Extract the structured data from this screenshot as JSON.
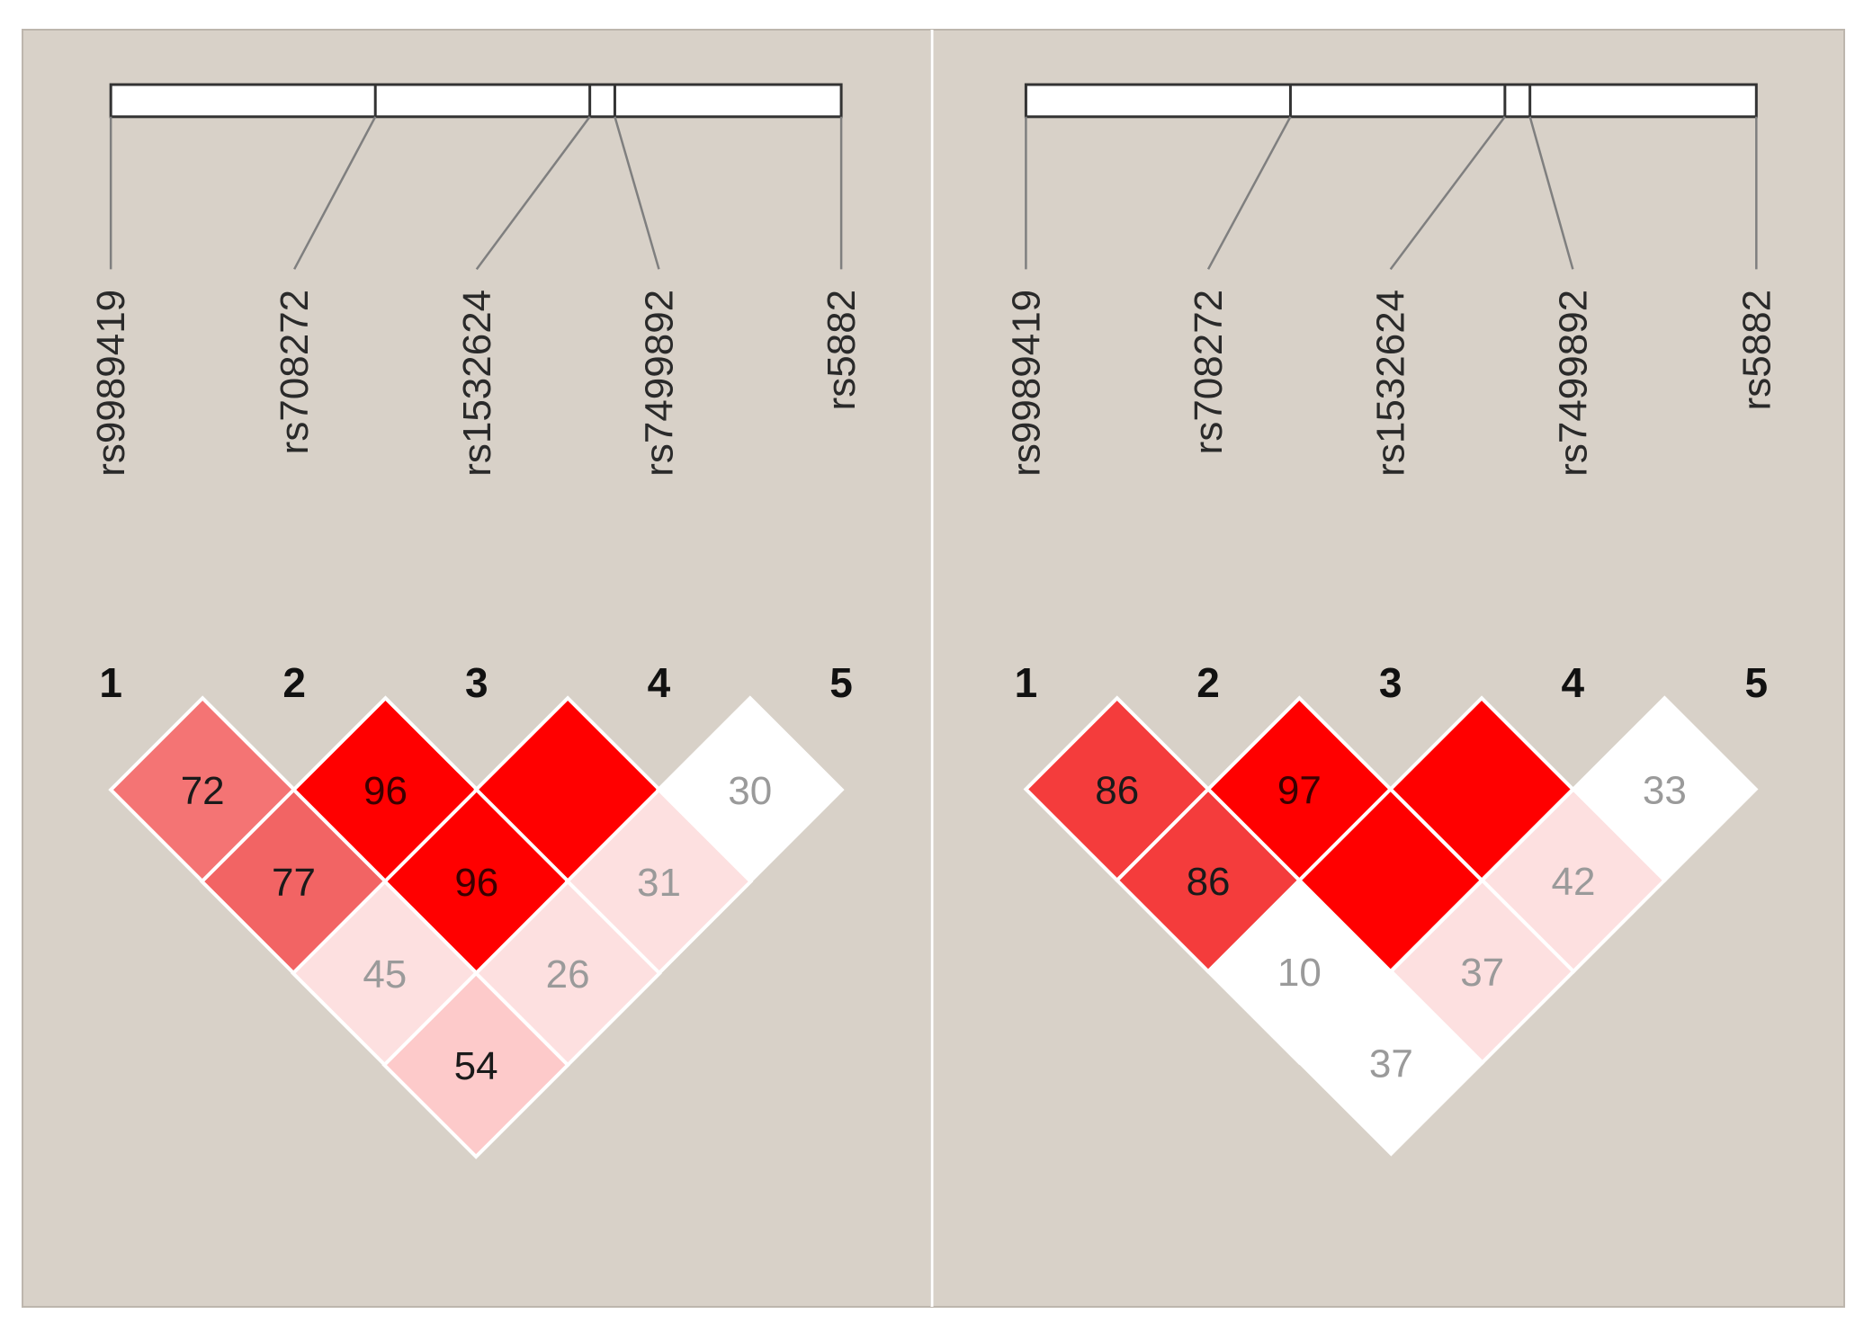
{
  "colors": {
    "panel_bg": "#d8d1c8",
    "panel_border": "#bdb6ad",
    "divider": "#ffffff",
    "track_fill": "#ffffff",
    "track_stroke": "#333333",
    "connector": "#7f7f7f"
  },
  "panels": [
    {
      "id": "left",
      "markers": [
        {
          "index": "1",
          "snp": "rs9989419"
        },
        {
          "index": "2",
          "snp": "rs708272"
        },
        {
          "index": "3",
          "snp": "rs1532624"
        },
        {
          "index": "4",
          "snp": "rs7499892"
        },
        {
          "index": "5",
          "snp": "rs5882"
        }
      ],
      "ld_cells": [
        {
          "pair": "1-2",
          "label": "72",
          "fill": "#f47474",
          "text_color": "#1a1a1a"
        },
        {
          "pair": "2-3",
          "label": "96",
          "fill": "#ff0000",
          "text_color": "#3a0000"
        },
        {
          "pair": "3-4",
          "label": "",
          "fill": "#ff0000",
          "text_color": "#3a0000"
        },
        {
          "pair": "4-5",
          "label": "30",
          "fill": "#ffffff",
          "text_color": "#9a9a9a"
        },
        {
          "pair": "1-3",
          "label": "77",
          "fill": "#f26464",
          "text_color": "#1a1a1a"
        },
        {
          "pair": "2-4",
          "label": "96",
          "fill": "#ff0000",
          "text_color": "#3a0000"
        },
        {
          "pair": "3-5",
          "label": "31",
          "fill": "#fde0e0",
          "text_color": "#9a9a9a"
        },
        {
          "pair": "1-4",
          "label": "45",
          "fill": "#fde0e0",
          "text_color": "#9a9a9a"
        },
        {
          "pair": "2-5",
          "label": "26",
          "fill": "#fde0e0",
          "text_color": "#9a9a9a"
        },
        {
          "pair": "1-5",
          "label": "54",
          "fill": "#fdcaca",
          "text_color": "#1a1a1a"
        }
      ]
    },
    {
      "id": "right",
      "markers": [
        {
          "index": "1",
          "snp": "rs9989419"
        },
        {
          "index": "2",
          "snp": "rs708272"
        },
        {
          "index": "3",
          "snp": "rs1532624"
        },
        {
          "index": "4",
          "snp": "rs7499892"
        },
        {
          "index": "5",
          "snp": "rs5882"
        }
      ],
      "ld_cells": [
        {
          "pair": "1-2",
          "label": "86",
          "fill": "#f43c3c",
          "text_color": "#1a1a1a"
        },
        {
          "pair": "2-3",
          "label": "97",
          "fill": "#ff0000",
          "text_color": "#3a0000"
        },
        {
          "pair": "3-4",
          "label": "",
          "fill": "#ff0000",
          "text_color": "#3a0000"
        },
        {
          "pair": "4-5",
          "label": "33",
          "fill": "#ffffff",
          "text_color": "#9a9a9a"
        },
        {
          "pair": "1-3",
          "label": "86",
          "fill": "#f43c3c",
          "text_color": "#1a1a1a"
        },
        {
          "pair": "2-4",
          "label": "",
          "fill": "#ff0000",
          "text_color": "#3a0000"
        },
        {
          "pair": "3-5",
          "label": "42",
          "fill": "#fde0e0",
          "text_color": "#9a9a9a"
        },
        {
          "pair": "1-4",
          "label": "10",
          "fill": "#ffffff",
          "text_color": "#9a9a9a"
        },
        {
          "pair": "2-5",
          "label": "37",
          "fill": "#fde0e0",
          "text_color": "#9a9a9a"
        },
        {
          "pair": "1-5",
          "label": "37",
          "fill": "#ffffff",
          "text_color": "#9a9a9a"
        }
      ]
    }
  ]
}
